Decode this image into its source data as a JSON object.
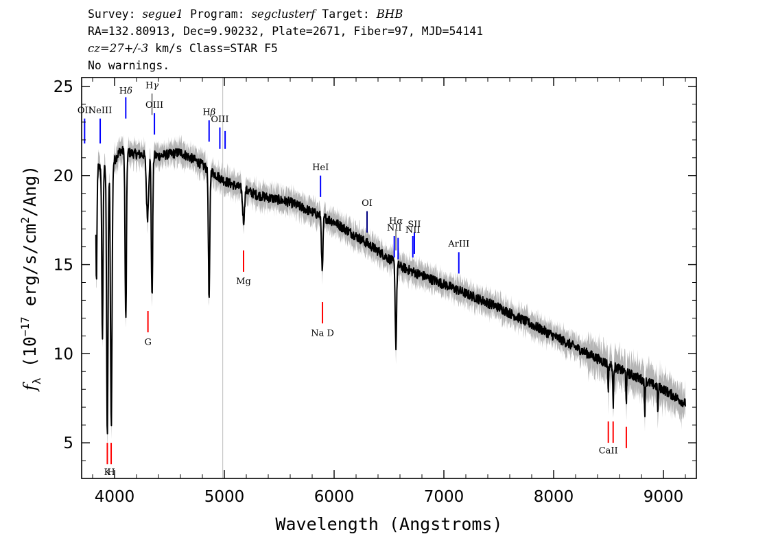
{
  "header": {
    "line1": {
      "survey_label": "Survey:",
      "survey": "segue1",
      "program_label": "Program:",
      "program": "segclusterf",
      "target_label": "Target:",
      "target": "BHB"
    },
    "line2": "RA=132.80913, Dec=9.90232, Plate=2671, Fiber=97, MJD=54141",
    "line3": {
      "cz": "cz=27+/-3",
      "rest": "km/s Class=STAR F5"
    },
    "line4": "No warnings."
  },
  "chart_data": {
    "type": "line",
    "title": "",
    "xlabel": "Wavelength (Angstroms)",
    "ylabel": "f_λ (10^-17 erg/s/cm^2/Ang)",
    "xlim": [
      3700,
      9300
    ],
    "ylim": [
      3,
      25.5
    ],
    "xticks": [
      4000,
      5000,
      6000,
      7000,
      8000,
      9000
    ],
    "yticks": [
      5,
      10,
      15,
      20,
      25
    ],
    "grid": false,
    "vertical_marker_x": 4985,
    "series": [
      {
        "role": "flux",
        "color": "#000000",
        "continuum": [
          [
            3830,
            20.5
          ],
          [
            3950,
            20.3
          ],
          [
            4050,
            21.4
          ],
          [
            4200,
            21.2
          ],
          [
            4400,
            21.1
          ],
          [
            4600,
            21.3
          ],
          [
            4750,
            20.8
          ],
          [
            5000,
            19.7
          ],
          [
            5300,
            18.9
          ],
          [
            5600,
            18.5
          ],
          [
            6000,
            17.4
          ],
          [
            6300,
            16.2
          ],
          [
            6600,
            14.9
          ],
          [
            7000,
            13.9
          ],
          [
            7500,
            12.6
          ],
          [
            8000,
            11.0
          ],
          [
            8500,
            9.4
          ],
          [
            9000,
            8.0
          ],
          [
            9200,
            7.2
          ]
        ],
        "absorption": [
          {
            "x": 3835,
            "depth": 6.5,
            "width": 7
          },
          {
            "x": 3889,
            "depth": 9.5,
            "width": 8
          },
          {
            "x": 3934,
            "depth": 15.0,
            "width": 9
          },
          {
            "x": 3970,
            "depth": 14.5,
            "width": 10
          },
          {
            "x": 4102,
            "depth": 9.5,
            "width": 9
          },
          {
            "x": 4300,
            "depth": 3.5,
            "width": 14
          },
          {
            "x": 4341,
            "depth": 8.0,
            "width": 9
          },
          {
            "x": 4861,
            "depth": 7.3,
            "width": 9
          },
          {
            "x": 5175,
            "depth": 1.8,
            "width": 12
          },
          {
            "x": 5892,
            "depth": 3.2,
            "width": 9
          },
          {
            "x": 6563,
            "depth": 4.6,
            "width": 9
          },
          {
            "x": 8498,
            "depth": 1.3,
            "width": 5
          },
          {
            "x": 8542,
            "depth": 2.2,
            "width": 5
          },
          {
            "x": 8662,
            "depth": 1.6,
            "width": 5
          },
          {
            "x": 8830,
            "depth": 1.8,
            "width": 5
          },
          {
            "x": 8950,
            "depth": 1.4,
            "width": 5
          }
        ]
      },
      {
        "role": "error-band",
        "color": "#b5b5b5"
      }
    ],
    "line_markers": [
      {
        "label": "OII",
        "x": 3727,
        "y0": 21.8,
        "y1": 23.2,
        "color": "#0000ff",
        "label_y": 23.5,
        "italic_greek": false
      },
      {
        "label": "NeIII",
        "x": 3869,
        "y0": 21.8,
        "y1": 23.2,
        "color": "#0000ff",
        "label_y": 23.5,
        "italic_greek": false
      },
      {
        "label": "Hδ",
        "x": 4102,
        "y0": 23.2,
        "y1": 24.4,
        "color": "#0000ff",
        "label_y": 24.6,
        "italic_greek": true
      },
      {
        "label": "Hγ",
        "x": 4341,
        "y0": 23.4,
        "y1": 24.6,
        "color": "#888888",
        "label_y": 24.9,
        "italic_greek": true
      },
      {
        "label": "OIII",
        "x": 4363,
        "y0": 22.3,
        "y1": 23.5,
        "color": "#0000ff",
        "label_y": 23.8,
        "italic_greek": false
      },
      {
        "label": "Hβ",
        "x": 4861,
        "y0": 21.9,
        "y1": 23.1,
        "color": "#0000ff",
        "label_y": 23.4,
        "italic_greek": true
      },
      {
        "label": "OIII",
        "x": 4959,
        "y0": 21.5,
        "y1": 22.7,
        "color": "#0000ff",
        "label_y": 23.0,
        "italic_greek": false
      },
      {
        "label": "",
        "x": 5007,
        "y0": 21.5,
        "y1": 22.5,
        "color": "#0000ff",
        "label_y": 0,
        "italic_greek": false
      },
      {
        "label": "HeI",
        "x": 5876,
        "y0": 18.8,
        "y1": 20.0,
        "color": "#0000ff",
        "label_y": 20.3,
        "italic_greek": false
      },
      {
        "label": "OI",
        "x": 6300,
        "y0": 16.8,
        "y1": 18.0,
        "color": "#000080",
        "label_y": 18.3,
        "italic_greek": false
      },
      {
        "label": "NII",
        "x": 6548,
        "y0": 15.4,
        "y1": 16.6,
        "color": "#0000ff",
        "label_y": 16.9,
        "italic_greek": false
      },
      {
        "label": "Hα",
        "x": 6563,
        "y0": 15.8,
        "y1": 17.0,
        "color": "#888888",
        "label_y": 17.3,
        "italic_greek": true
      },
      {
        "label": "",
        "x": 6583,
        "y0": 15.3,
        "y1": 16.5,
        "color": "#0000ff",
        "label_y": 0,
        "italic_greek": false
      },
      {
        "label": "NII",
        "x": 6717,
        "y0": 15.4,
        "y1": 16.6,
        "color": "#0000ff",
        "label_y": 16.8,
        "italic_greek": false
      },
      {
        "label": "SII",
        "x": 6731,
        "y0": 15.6,
        "y1": 16.8,
        "color": "#0000ff",
        "label_y": 17.1,
        "italic_greek": false
      },
      {
        "label": "ArIII",
        "x": 7136,
        "y0": 14.5,
        "y1": 15.7,
        "color": "#0000ff",
        "label_y": 16.0,
        "italic_greek": false
      },
      {
        "label": "K",
        "x": 3934,
        "y0": 3.8,
        "y1": 5.0,
        "color": "#ff0000",
        "label_y": 3.2,
        "italic_greek": false
      },
      {
        "label": "H",
        "x": 3969,
        "y0": 3.8,
        "y1": 5.0,
        "color": "#ff0000",
        "label_y": 3.2,
        "italic_greek": false
      },
      {
        "label": "G",
        "x": 4304,
        "y0": 11.2,
        "y1": 12.4,
        "color": "#ff0000",
        "label_y": 10.5,
        "italic_greek": false
      },
      {
        "label": "Mg",
        "x": 5175,
        "y0": 14.6,
        "y1": 15.8,
        "color": "#ff0000",
        "label_y": 13.9,
        "italic_greek": false
      },
      {
        "label": "Na D",
        "x": 5894,
        "y0": 11.7,
        "y1": 12.9,
        "color": "#ff0000",
        "label_y": 11.0,
        "italic_greek": false
      },
      {
        "label": "CaII",
        "x": 8498,
        "y0": 5.0,
        "y1": 6.2,
        "color": "#ff0000",
        "label_y": 4.4,
        "italic_greek": false
      },
      {
        "label": "",
        "x": 8542,
        "y0": 5.0,
        "y1": 6.2,
        "color": "#ff0000",
        "label_y": 0,
        "italic_greek": false
      },
      {
        "label": "",
        "x": 8662,
        "y0": 4.7,
        "y1": 5.9,
        "color": "#ff0000",
        "label_y": 0,
        "italic_greek": false
      }
    ]
  }
}
